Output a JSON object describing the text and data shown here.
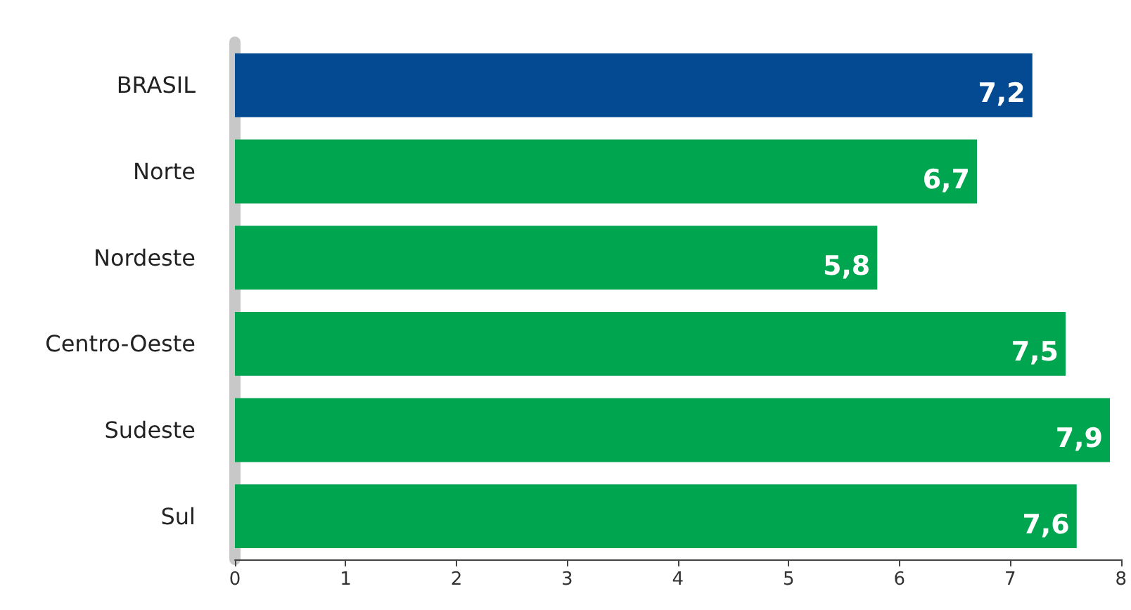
{
  "chart_data": {
    "type": "bar",
    "orientation": "horizontal",
    "categories": [
      "BRASIL",
      "Norte",
      "Nordeste",
      "Centro-Oeste",
      "Sudeste",
      "Sul"
    ],
    "values": [
      7.2,
      6.7,
      5.8,
      7.5,
      7.9,
      7.6
    ],
    "colors": [
      "#034a92",
      "#00a54f",
      "#00a54f",
      "#00a54f",
      "#00a54f",
      "#00a54f"
    ],
    "value_labels": [
      "7,2",
      "6,7",
      "5,8",
      "7,5",
      "7,9",
      "7,6"
    ],
    "xlim": [
      0,
      8
    ],
    "xticks": [
      0,
      1,
      2,
      3,
      4,
      5,
      6,
      7,
      8
    ],
    "grid": false
  }
}
